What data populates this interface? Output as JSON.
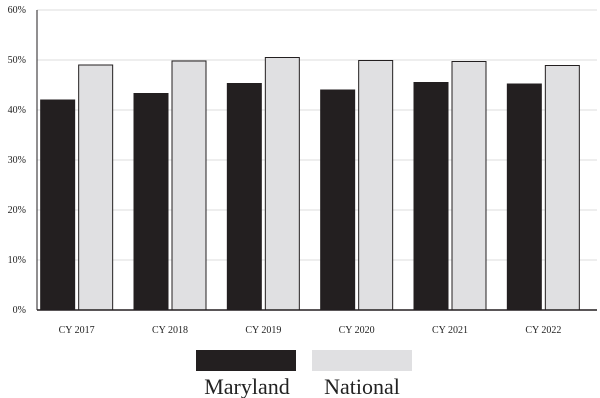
{
  "chart_data": {
    "type": "bar",
    "categories": [
      "CY 2017",
      "CY 2018",
      "CY 2019",
      "CY 2020",
      "CY 2021",
      "CY 2022"
    ],
    "series": [
      {
        "name": "Maryland",
        "values": [
          42,
          43.3,
          45.3,
          44,
          45.5,
          45.2
        ],
        "color": "#231f20"
      },
      {
        "name": "National",
        "values": [
          49,
          49.8,
          50.5,
          49.9,
          49.7,
          48.9
        ],
        "color": "#e0e0e2"
      }
    ],
    "yticks": [
      "0%",
      "10%",
      "20%",
      "30%",
      "40%",
      "50%",
      "60%"
    ],
    "ylim": [
      0,
      60
    ],
    "grid": true,
    "legend_position": "bottom",
    "title": "",
    "xlabel": "",
    "ylabel": ""
  }
}
